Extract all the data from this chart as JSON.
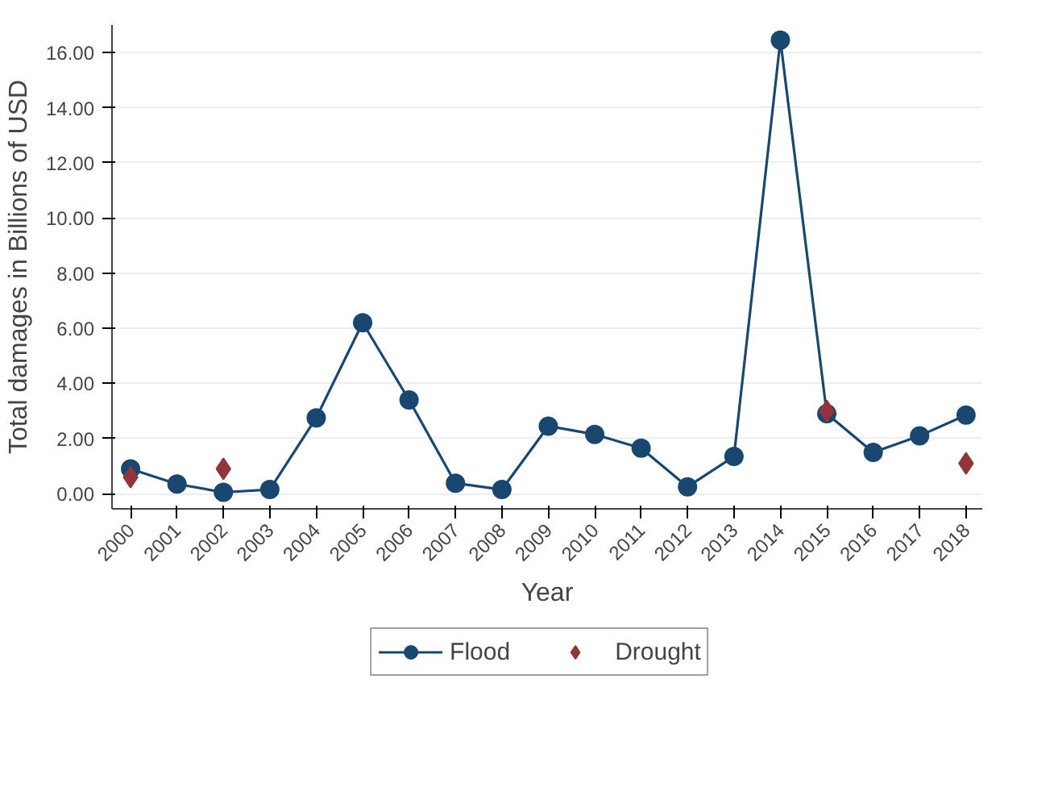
{
  "chart_data": {
    "type": "line",
    "xlabel": "Year",
    "ylabel": "Total damages in Billions of USD",
    "categories": [
      "2000",
      "2001",
      "2002",
      "2003",
      "2004",
      "2005",
      "2006",
      "2007",
      "2008",
      "2009",
      "2010",
      "2011",
      "2012",
      "2013",
      "2014",
      "2015",
      "2016",
      "2017",
      "2018"
    ],
    "series": [
      {
        "name": "Flood",
        "color": "#1a476f",
        "marker": "circle",
        "values": [
          0.9,
          0.35,
          0.05,
          0.15,
          2.75,
          6.2,
          3.4,
          0.38,
          0.15,
          2.45,
          2.15,
          1.65,
          0.25,
          1.35,
          16.45,
          2.9,
          1.5,
          2.1,
          2.85
        ]
      },
      {
        "name": "Drought",
        "color": "#90353b",
        "type": "scatter",
        "marker": "diamond",
        "values": [
          0.6,
          null,
          0.9,
          null,
          null,
          null,
          null,
          null,
          null,
          null,
          null,
          null,
          null,
          null,
          null,
          3.0,
          null,
          null,
          1.1
        ]
      }
    ],
    "ylim": [
      -0.55,
      17.0
    ],
    "yticks": [
      {
        "value": 0,
        "label": "0.00"
      },
      {
        "value": 2,
        "label": "2.00"
      },
      {
        "value": 4,
        "label": "4.00"
      },
      {
        "value": 6,
        "label": "6.00"
      },
      {
        "value": 8,
        "label": "8.00"
      },
      {
        "value": 10,
        "label": "10.00"
      },
      {
        "value": 12,
        "label": "12.00"
      },
      {
        "value": 14,
        "label": "14.00"
      },
      {
        "value": 16,
        "label": "16.00"
      }
    ],
    "grid": "y",
    "legend": "bottom"
  }
}
